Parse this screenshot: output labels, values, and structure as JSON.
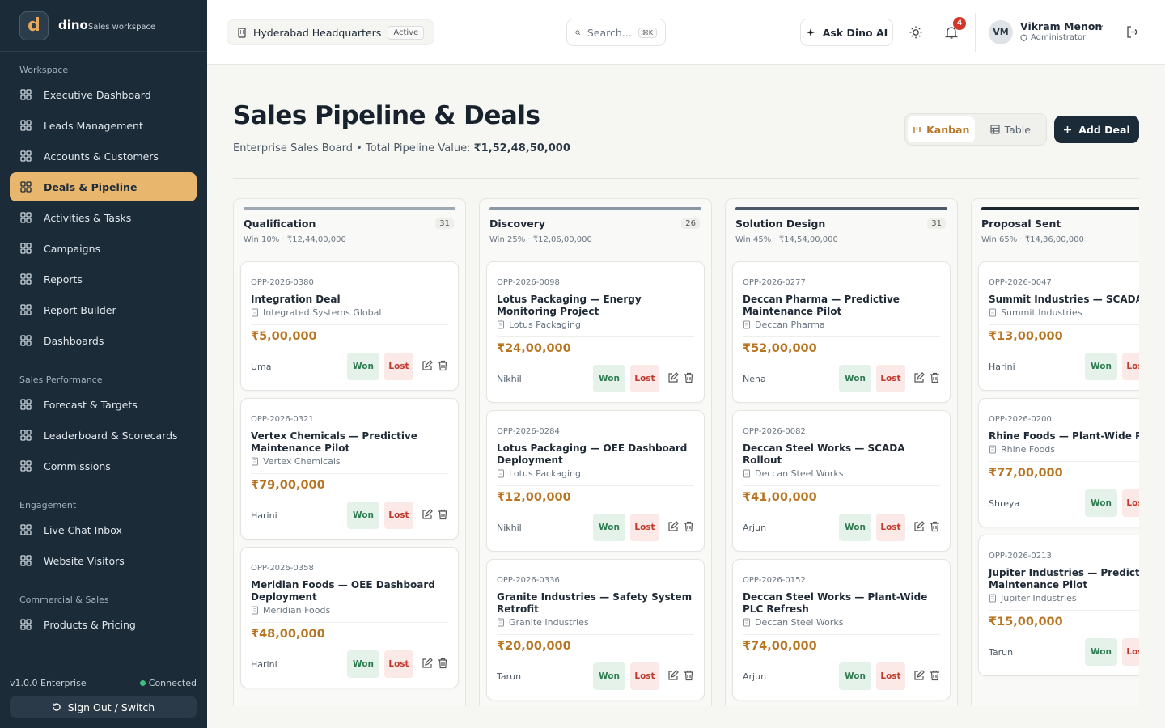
{
  "sidebar": {
    "logo": "d",
    "brand": "dino",
    "tagline": "Sales workspace",
    "sections": [
      {
        "title": "Workspace",
        "items": [
          "Executive Dashboard",
          "Leads Management",
          "Accounts & Customers",
          "Deals & Pipeline",
          "Activities & Tasks",
          "Campaigns",
          "Reports",
          "Report Builder",
          "Dashboards"
        ]
      },
      {
        "title": "Sales Performance",
        "items": [
          "Forecast & Targets",
          "Leaderboard & Scorecards",
          "Commissions"
        ]
      },
      {
        "title": "Engagement",
        "items": [
          "Live Chat Inbox",
          "Website Visitors"
        ]
      },
      {
        "title": "Commercial & Sales",
        "items": [
          "Products & Pricing"
        ]
      }
    ],
    "active": "Deals & Pipeline",
    "version": "v1.0.0 Enterprise",
    "status": "Connected",
    "signout": "Sign Out / Switch"
  },
  "topbar": {
    "location": "Hyderabad Headquarters",
    "location_badge": "Active",
    "search": "Search...",
    "shortcut": "⌘K",
    "ask": "Ask Dino AI",
    "notifications": 4,
    "avatar": "VM",
    "user": "Vikram Menon",
    "role": "Administrator"
  },
  "header": {
    "title": "Sales Pipeline & Deals",
    "subtitle": "Enterprise Sales Board • Total Pipeline Value:",
    "total": "₹1,52,48,50,000",
    "views": [
      "Kanban",
      "Table"
    ],
    "add": "Add Deal"
  },
  "card_actions": {
    "won": "Won",
    "lost": "Lost"
  },
  "columns": [
    {
      "name": "Qualification",
      "count": 31,
      "meta": "Win 10% · ₹12,44,00,000",
      "deals": [
        {
          "id": "OPP-2026-0380",
          "title": "Integration Deal",
          "account": "Integrated Systems Global",
          "amount": "₹5,00,000",
          "owner": "Uma"
        },
        {
          "id": "OPP-2026-0321",
          "title": "Vertex Chemicals — Predictive Maintenance Pilot",
          "account": "Vertex Chemicals",
          "amount": "₹79,00,000",
          "owner": "Harini"
        },
        {
          "id": "OPP-2026-0358",
          "title": "Meridian Foods — OEE Dashboard Deployment",
          "account": "Meridian Foods",
          "amount": "₹48,00,000",
          "owner": "Harini"
        }
      ]
    },
    {
      "name": "Discovery",
      "count": 26,
      "meta": "Win 25% · ₹12,06,00,000",
      "deals": [
        {
          "id": "OPP-2026-0098",
          "title": "Lotus Packaging — Energy Monitoring Project",
          "account": "Lotus Packaging",
          "amount": "₹24,00,000",
          "owner": "Nikhil"
        },
        {
          "id": "OPP-2026-0284",
          "title": "Lotus Packaging — OEE Dashboard Deployment",
          "account": "Lotus Packaging",
          "amount": "₹12,00,000",
          "owner": "Nikhil"
        },
        {
          "id": "OPP-2026-0336",
          "title": "Granite Industries — Safety System Retrofit",
          "account": "Granite Industries",
          "amount": "₹20,00,000",
          "owner": "Tarun"
        }
      ]
    },
    {
      "name": "Solution Design",
      "count": 31,
      "meta": "Win 45% · ₹14,54,00,000",
      "deals": [
        {
          "id": "OPP-2026-0277",
          "title": "Deccan Pharma — Predictive Maintenance Pilot",
          "account": "Deccan Pharma",
          "amount": "₹52,00,000",
          "owner": "Neha"
        },
        {
          "id": "OPP-2026-0082",
          "title": "Deccan Steel Works — SCADA Rollout",
          "account": "Deccan Steel Works",
          "amount": "₹41,00,000",
          "owner": "Arjun"
        },
        {
          "id": "OPP-2026-0152",
          "title": "Deccan Steel Works — Plant-Wide PLC Refresh",
          "account": "Deccan Steel Works",
          "amount": "₹74,00,000",
          "owner": "Arjun"
        }
      ]
    },
    {
      "name": "Proposal Sent",
      "meta": "Win 65% · ₹14,36,00,000",
      "deals": [
        {
          "id": "OPP-2026-0047",
          "title": "Summit Industries — SCADA Rol",
          "account": "Summit Industries",
          "amount": "₹13,00,000",
          "owner": "Harini"
        },
        {
          "id": "OPP-2026-0200",
          "title": "Rhine Foods — Plant-Wide PLC R",
          "account": "Rhine Foods",
          "amount": "₹77,00,000",
          "owner": "Shreya"
        },
        {
          "id": "OPP-2026-0213",
          "title": "Jupiter Industries — Predictive Maintenance Pilot",
          "account": "Jupiter Industries",
          "amount": "₹15,00,000",
          "owner": "Tarun"
        }
      ]
    }
  ]
}
